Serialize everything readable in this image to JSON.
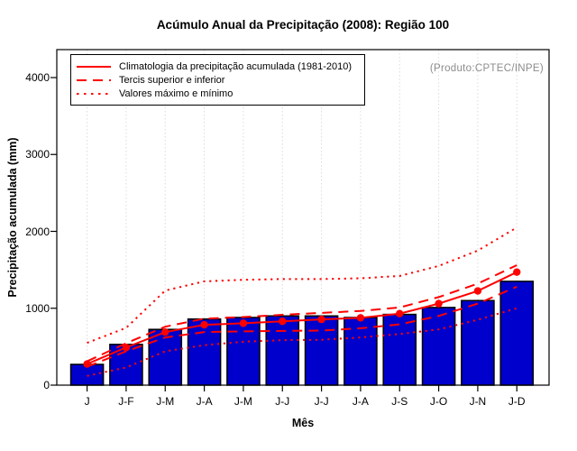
{
  "title": "Acúmulo Anual da Precipitação (2008): Região 100",
  "product_label": "(Produto:CPTEC/INPE)",
  "chart_data": {
    "type": "bar",
    "title": "Acúmulo Anual da Precipitação (2008): Região 100",
    "xlabel": "Mês",
    "ylabel": "Precipitação acumulada (mm)",
    "categories": [
      "J",
      "J-F",
      "J-M",
      "J-A",
      "J-M",
      "J-J",
      "J-J",
      "J-A",
      "J-S",
      "J-O",
      "J-N",
      "J-D"
    ],
    "yticks": [
      0,
      1000,
      2000,
      3000,
      4000
    ],
    "ylim": [
      0,
      4360
    ],
    "grid": "vertical-dotted",
    "legend_position": "top-left",
    "legend": [
      "Climatologia da precipitação acumulada (1981-2010)",
      "Tercis superior e inferior",
      "Valores máximo e mínimo"
    ],
    "bar_series": {
      "name": "Precipitação acumulada (2008)",
      "values": [
        270,
        530,
        725,
        860,
        880,
        900,
        900,
        880,
        920,
        1010,
        1100,
        1350
      ]
    },
    "line_series": [
      {
        "name": "Climatologia da precipitação acumulada (1981-2010)",
        "style": "solid",
        "markers": true,
        "values": [
          275,
          490,
          690,
          785,
          805,
          830,
          855,
          875,
          930,
          1060,
          1225,
          1470
        ]
      },
      {
        "name": "Tercil superior",
        "style": "dashed",
        "markers": false,
        "values": [
          310,
          545,
          760,
          865,
          885,
          915,
          940,
          965,
          1010,
          1145,
          1320,
          1560
        ]
      },
      {
        "name": "Tercil inferior",
        "style": "dashed",
        "markers": false,
        "values": [
          240,
          440,
          620,
          690,
          700,
          705,
          710,
          740,
          790,
          900,
          1060,
          1280
        ]
      },
      {
        "name": "Valores máximo",
        "style": "dotted",
        "markers": false,
        "values": [
          550,
          745,
          1230,
          1350,
          1370,
          1380,
          1380,
          1390,
          1420,
          1550,
          1750,
          2050
        ]
      },
      {
        "name": "Valores mínimo",
        "style": "dotted",
        "markers": false,
        "values": [
          120,
          230,
          440,
          520,
          565,
          585,
          590,
          620,
          665,
          725,
          850,
          1000
        ]
      }
    ],
    "colors": {
      "bar_fill": "#0000CC",
      "bar_border": "#000000",
      "line": "#FF0000",
      "grid": "#DCDCDC",
      "box": "#000000",
      "product_text": "#8C8C8C"
    }
  }
}
